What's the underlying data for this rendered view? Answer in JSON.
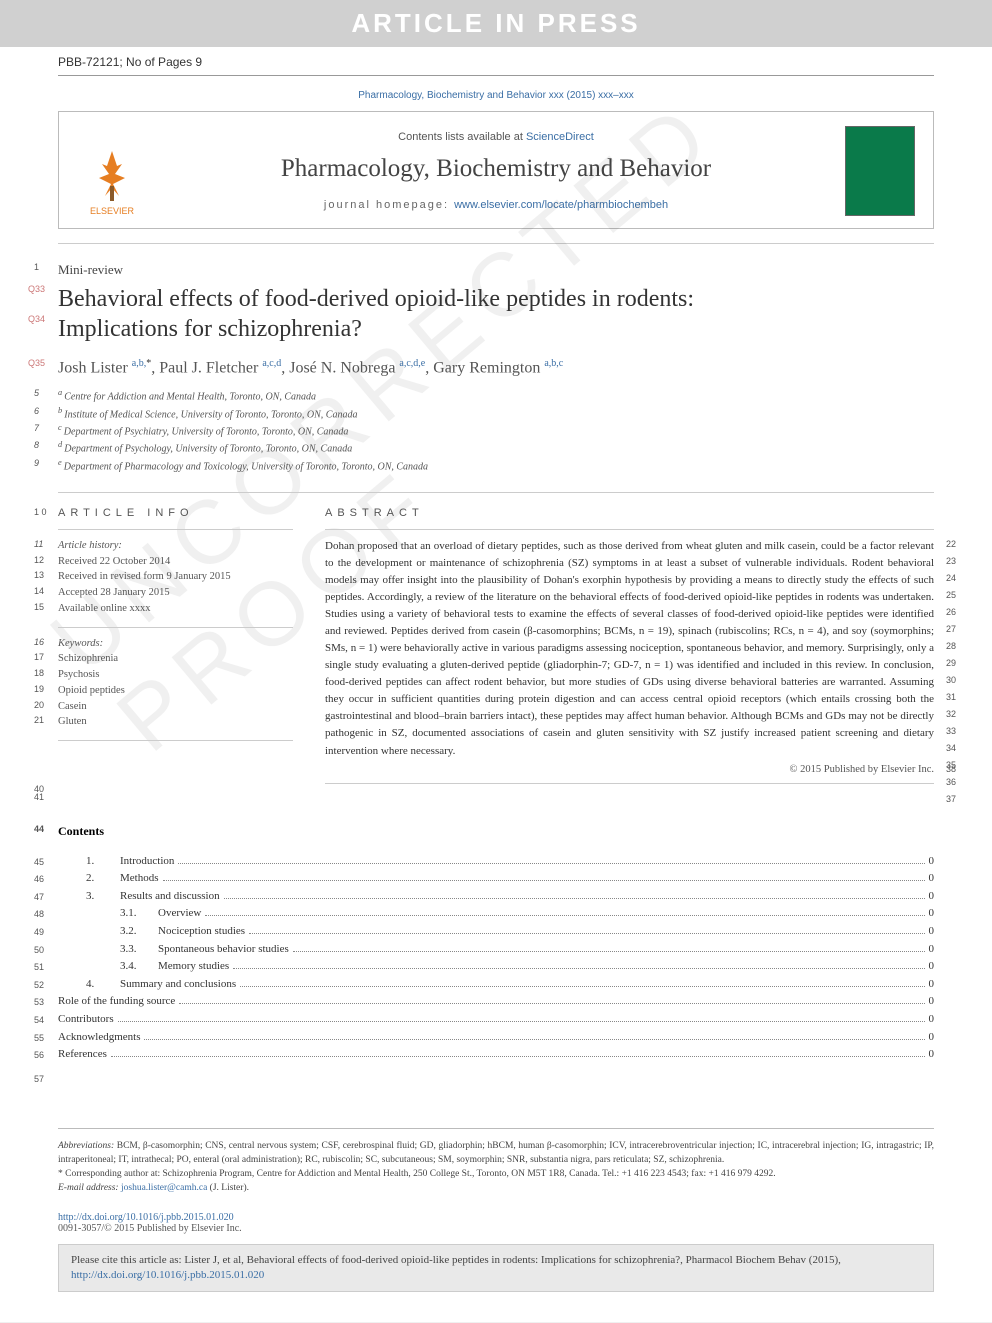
{
  "banner": "ARTICLE IN PRESS",
  "doc_id": "PBB-72121; No of Pages 9",
  "journal_ref": "Pharmacology, Biochemistry and Behavior xxx (2015) xxx–xxx",
  "contents_lists_prefix": "Contents lists available at ",
  "contents_lists_link": "ScienceDirect",
  "journal_title": "Pharmacology, Biochemistry and Behavior",
  "homepage_label": "journal homepage: ",
  "homepage_url": "www.elsevier.com/locate/pharmbiochembeh",
  "elsevier_label": "ELSEVIER",
  "line_numbers": {
    "mini": "1",
    "title_q1": "Q33",
    "title_q2": "Q34",
    "authors": "Q35",
    "affil_start": 5,
    "article_info": "1 0",
    "history_start": 11,
    "keywords_start": 16,
    "abstract_start": 22,
    "copyright_ln": "38",
    "after_abs": [
      "40",
      "41"
    ],
    "contents_ln": "44",
    "toc_start": 45,
    "footnote_ln": "57"
  },
  "mini_review": "Mini-review",
  "title_line1": "Behavioral effects of food-derived opioid-like peptides in rodents:",
  "title_line2": "Implications for schizophrenia?",
  "authors": [
    {
      "name": "Josh Lister ",
      "sup": "a,b,",
      "star": "*"
    },
    {
      "name": ", Paul J. Fletcher ",
      "sup": "a,c,d"
    },
    {
      "name": ", José N. Nobrega ",
      "sup": "a,c,d,e"
    },
    {
      "name": ", Gary Remington ",
      "sup": "a,b,c"
    }
  ],
  "affiliations": [
    {
      "mark": "a",
      "text": "Centre for Addiction and Mental Health, Toronto, ON, Canada"
    },
    {
      "mark": "b",
      "text": "Institute of Medical Science, University of Toronto, Toronto, ON, Canada"
    },
    {
      "mark": "c",
      "text": "Department of Psychiatry, University of Toronto, Toronto, ON, Canada"
    },
    {
      "mark": "d",
      "text": "Department of Psychology, University of Toronto, Toronto, ON, Canada"
    },
    {
      "mark": "e",
      "text": "Department of Pharmacology and Toxicology, University of Toronto, Toronto, ON, Canada"
    }
  ],
  "article_info_head": "ARTICLE INFO",
  "abstract_head": "ABSTRACT",
  "history": {
    "label": "Article history:",
    "items": [
      "Received 22 October 2014",
      "Received in revised form 9 January 2015",
      "Accepted 28 January 2015",
      "Available online xxxx"
    ]
  },
  "keywords": {
    "label": "Keywords:",
    "items": [
      "Schizophrenia",
      "Psychosis",
      "Opioid peptides",
      "Casein",
      "Gluten"
    ]
  },
  "abstract_text": "Dohan proposed that an overload of dietary peptides, such as those derived from wheat gluten and milk casein, could be a factor relevant to the development or maintenance of schizophrenia (SZ) symptoms in at least a subset of vulnerable individuals. Rodent behavioral models may offer insight into the plausibility of Dohan's exorphin hypothesis by providing a means to directly study the effects of such peptides. Accordingly, a review of the literature on the behavioral effects of food-derived opioid-like peptides in rodents was undertaken. Studies using a variety of behavioral tests to examine the effects of several classes of food-derived opioid-like peptides were identified and reviewed. Peptides derived from casein (β-casomorphins; BCMs, n = 19), spinach (rubiscolins; RCs, n = 4), and soy (soymorphins; SMs, n = 1) were behaviorally active in various paradigms assessing nociception, spontaneous behavior, and memory. Surprisingly, only a single study evaluating a gluten-derived peptide (gliadorphin-7; GD-7, n = 1) was identified and included in this review. In conclusion, food-derived peptides can affect rodent behavior, but more studies of GDs using diverse behavioral batteries are warranted. Assuming they occur in sufficient quantities during protein digestion and can access central opioid receptors (which entails crossing both the gastrointestinal and blood–brain barriers intact), these peptides may affect human behavior. Although BCMs and GDs may not be directly pathogenic in SZ, documented associations of casein and gluten sensitivity with SZ justify increased patient screening and dietary intervention where necessary.",
  "copyright": "© 2015 Published by Elsevier Inc.",
  "contents_head": "Contents",
  "toc": [
    {
      "ln": "45",
      "indent": 1,
      "seq": "1.",
      "label": "Introduction",
      "page": "0"
    },
    {
      "ln": "46",
      "indent": 1,
      "seq": "2.",
      "label": "Methods",
      "page": "0"
    },
    {
      "ln": "47",
      "indent": 1,
      "seq": "3.",
      "label": "Results and discussion",
      "page": "0"
    },
    {
      "ln": "48",
      "indent": 2,
      "seq": "3.1.",
      "label": "Overview",
      "page": "0"
    },
    {
      "ln": "49",
      "indent": 2,
      "seq": "3.2.",
      "label": "Nociception studies",
      "page": "0"
    },
    {
      "ln": "50",
      "indent": 2,
      "seq": "3.3.",
      "label": "Spontaneous behavior studies",
      "page": "0"
    },
    {
      "ln": "51",
      "indent": 2,
      "seq": "3.4.",
      "label": "Memory studies",
      "page": "0"
    },
    {
      "ln": "52",
      "indent": 1,
      "seq": "4.",
      "label": "Summary and conclusions",
      "page": "0"
    },
    {
      "ln": "53",
      "indent": 0,
      "seq": "",
      "label": "Role of the funding source",
      "page": "0"
    },
    {
      "ln": "54",
      "indent": 0,
      "seq": "",
      "label": "Contributors",
      "page": "0"
    },
    {
      "ln": "55",
      "indent": 0,
      "seq": "",
      "label": "Acknowledgments",
      "page": "0"
    },
    {
      "ln": "56",
      "indent": 0,
      "seq": "",
      "label": "References",
      "page": "0"
    }
  ],
  "abbrev_label": "Abbreviations:",
  "abbrev_text": " BCM, β-casomorphin; CNS, central nervous system; CSF, cerebrospinal fluid; GD, gliadorphin; hBCM, human β-casomorphin; ICV, intracerebroventricular injection; IC, intracerebral injection; IG, intragastric; IP, intraperitoneal; IT, intrathecal; PO, enteral (oral administration); RC, rubiscolin; SC, subcutaneous; SM, soymorphin; SNR, substantia nigra, pars reticulata; SZ, schizophrenia.",
  "corr_label": "* Corresponding author at: ",
  "corr_text": "Schizophrenia Program, Centre for Addiction and Mental Health, 250 College St., Toronto, ON M5T 1R8, Canada. Tel.: +1 416 223 4543; fax: +1 416 979 4292.",
  "email_label": "E-mail address: ",
  "email_addr": "joshua.lister@camh.ca",
  "email_tail": " (J. Lister).",
  "doi_url": "http://dx.doi.org/10.1016/j.pbb.2015.01.020",
  "issn_line": "0091-3057/© 2015 Published by Elsevier Inc.",
  "cite_text_prefix": "Please cite this article as: Lister J, et al, Behavioral effects of food-derived opioid-like peptides in rodents: Implications for schizophrenia?, Pharmacol Biochem Behav (2015), ",
  "cite_url": "http://dx.doi.org/10.1016/j.pbb.2015.01.020",
  "colors": {
    "banner_bg": "#d0d0d0",
    "link": "#3a6ea5",
    "elsevier": "#e67e22",
    "cover": "#0a7a4a",
    "citebox_bg": "#e9e9e9"
  }
}
